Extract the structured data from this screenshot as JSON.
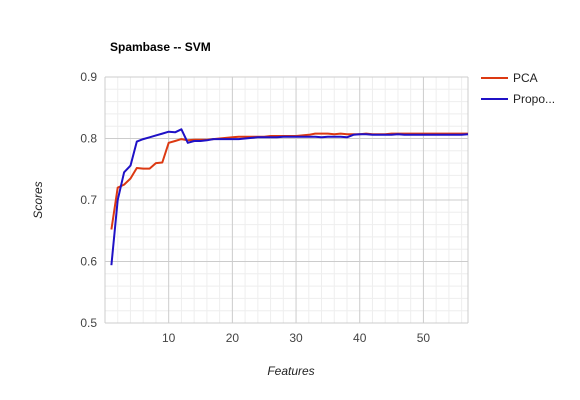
{
  "chart_data": {
    "type": "line",
    "title": "Spambase -- SVM",
    "xlabel": "Features",
    "ylabel": "Scores",
    "xlim": [
      0,
      57
    ],
    "ylim": [
      0.5,
      0.9
    ],
    "xticks": [
      10,
      20,
      30,
      40,
      50
    ],
    "xtick_labels": [
      "10",
      "20",
      "30",
      "40",
      "50"
    ],
    "yticks": [
      0.5,
      0.6,
      0.7,
      0.8,
      0.9
    ],
    "ytick_labels": [
      "0.5",
      "0.6",
      "0.7",
      "0.8",
      "0.9"
    ],
    "grid": true,
    "legend_position": "right",
    "x": [
      1,
      2,
      3,
      4,
      5,
      6,
      7,
      8,
      9,
      10,
      11,
      12,
      13,
      14,
      15,
      16,
      17,
      18,
      19,
      20,
      21,
      22,
      23,
      24,
      25,
      26,
      27,
      28,
      29,
      30,
      31,
      32,
      33,
      34,
      35,
      36,
      37,
      38,
      39,
      40,
      41,
      42,
      43,
      44,
      45,
      46,
      47,
      48,
      49,
      50,
      51,
      52,
      53,
      54,
      55,
      56,
      57
    ],
    "series": [
      {
        "name": "PCA",
        "color": "#dc3912",
        "values": [
          0.652,
          0.72,
          0.725,
          0.735,
          0.752,
          0.751,
          0.751,
          0.76,
          0.761,
          0.793,
          0.796,
          0.799,
          0.797,
          0.798,
          0.798,
          0.798,
          0.799,
          0.8,
          0.801,
          0.802,
          0.803,
          0.803,
          0.803,
          0.803,
          0.803,
          0.804,
          0.804,
          0.804,
          0.804,
          0.804,
          0.805,
          0.806,
          0.808,
          0.808,
          0.808,
          0.807,
          0.808,
          0.807,
          0.807,
          0.807,
          0.808,
          0.807,
          0.807,
          0.807,
          0.808,
          0.808,
          0.808,
          0.808,
          0.808,
          0.808,
          0.808,
          0.808,
          0.808,
          0.808,
          0.808,
          0.808,
          0.808
        ]
      },
      {
        "name": "Propo...",
        "color": "#1f11c6",
        "values": [
          0.594,
          0.7,
          0.745,
          0.756,
          0.795,
          0.799,
          0.802,
          0.805,
          0.808,
          0.811,
          0.81,
          0.815,
          0.793,
          0.796,
          0.796,
          0.797,
          0.799,
          0.799,
          0.799,
          0.799,
          0.799,
          0.8,
          0.801,
          0.802,
          0.802,
          0.802,
          0.802,
          0.803,
          0.803,
          0.803,
          0.803,
          0.803,
          0.803,
          0.802,
          0.803,
          0.803,
          0.803,
          0.802,
          0.806,
          0.807,
          0.807,
          0.806,
          0.806,
          0.806,
          0.806,
          0.807,
          0.806,
          0.806,
          0.806,
          0.806,
          0.806,
          0.806,
          0.806,
          0.806,
          0.806,
          0.806,
          0.807
        ]
      }
    ]
  }
}
